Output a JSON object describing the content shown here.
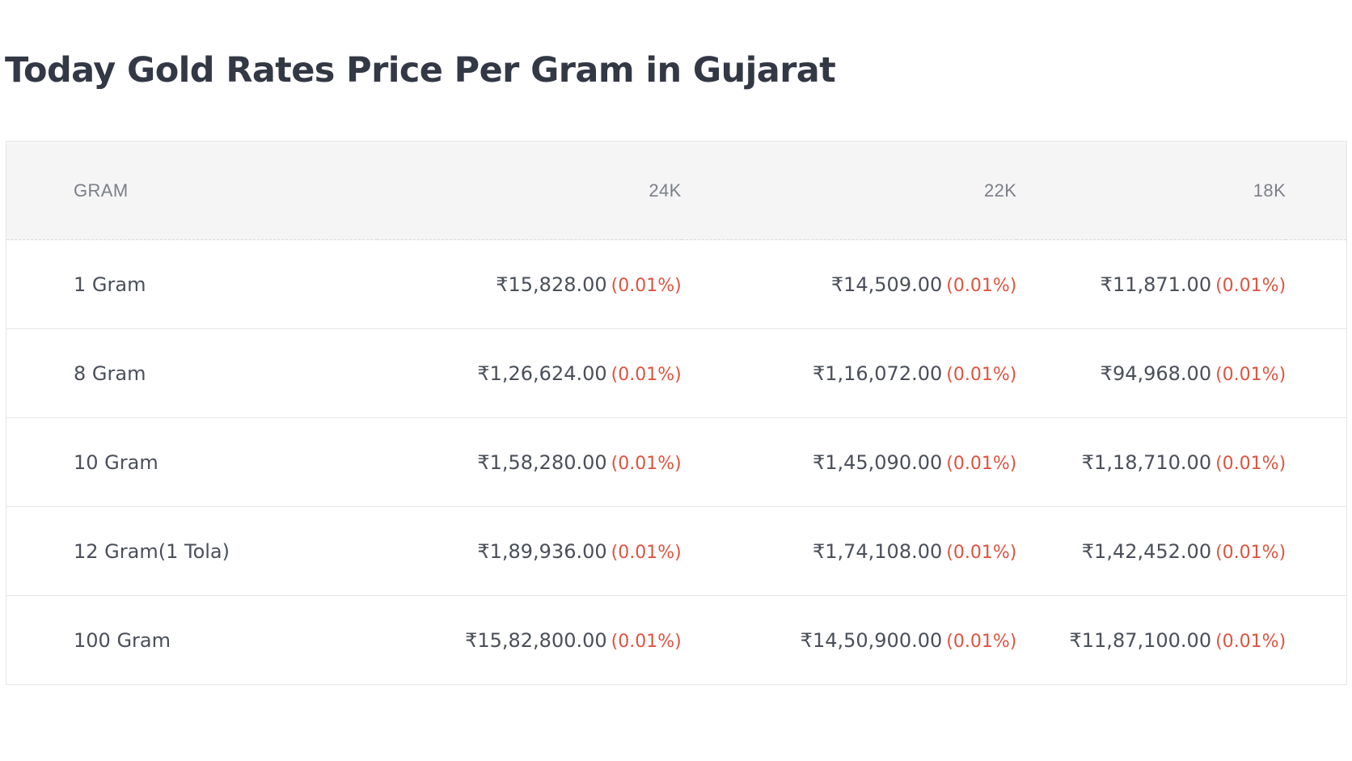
{
  "title": "Today Gold Rates Price Per Gram in Gujarat",
  "table": {
    "headers": {
      "gram": "GRAM",
      "k24": "24K",
      "k22": "22K",
      "k18": "18K"
    },
    "rows": [
      {
        "gram": "1 Gram",
        "k24": {
          "price": "₹15,828.00",
          "change": "(0.01%)"
        },
        "k22": {
          "price": "₹14,509.00",
          "change": "(0.01%)"
        },
        "k18": {
          "price": "₹11,871.00",
          "change": "(0.01%)"
        }
      },
      {
        "gram": "8 Gram",
        "k24": {
          "price": "₹1,26,624.00",
          "change": "(0.01%)"
        },
        "k22": {
          "price": "₹1,16,072.00",
          "change": "(0.01%)"
        },
        "k18": {
          "price": "₹94,968.00",
          "change": "(0.01%)"
        }
      },
      {
        "gram": "10 Gram",
        "k24": {
          "price": "₹1,58,280.00",
          "change": "(0.01%)"
        },
        "k22": {
          "price": "₹1,45,090.00",
          "change": "(0.01%)"
        },
        "k18": {
          "price": "₹1,18,710.00",
          "change": "(0.01%)"
        }
      },
      {
        "gram": "12 Gram(1 Tola)",
        "k24": {
          "price": "₹1,89,936.00",
          "change": "(0.01%)"
        },
        "k22": {
          "price": "₹1,74,108.00",
          "change": "(0.01%)"
        },
        "k18": {
          "price": "₹1,42,452.00",
          "change": "(0.01%)"
        }
      },
      {
        "gram": "100 Gram",
        "k24": {
          "price": "₹15,82,800.00",
          "change": "(0.01%)"
        },
        "k22": {
          "price": "₹14,50,900.00",
          "change": "(0.01%)"
        },
        "k18": {
          "price": "₹11,87,100.00",
          "change": "(0.01%)"
        }
      }
    ]
  },
  "colors": {
    "change": "#e0533f",
    "header_bg": "#f5f5f6",
    "title": "#333845"
  }
}
